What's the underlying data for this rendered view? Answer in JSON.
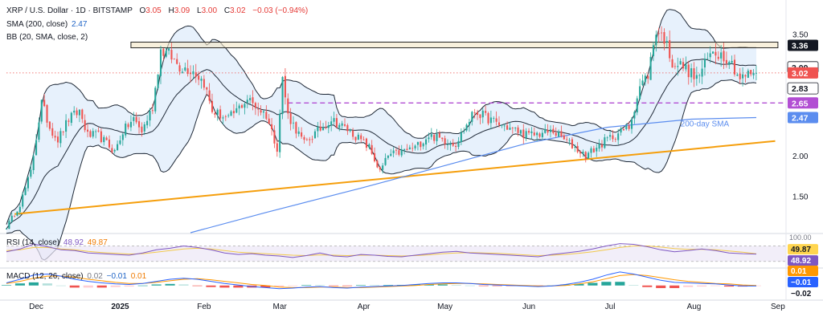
{
  "header": {
    "symbol": "XRP / U.S. Dollar · 1D · BITSTAMP",
    "o_label": "O",
    "o": "3.05",
    "h_label": "H",
    "h": "3.09",
    "l_label": "L",
    "l": "3.00",
    "c_label": "C",
    "c": "3.02",
    "chg": "−0.03 (−0.94%)",
    "sma_label": "SMA (200, close)",
    "sma_val": "2.47",
    "bb_label": "BB (20, SMA, close, 2)"
  },
  "rsi_header": {
    "label": "RSI (14, close)",
    "v1": "48.92",
    "v2": "49.87"
  },
  "macd_header": {
    "label": "MACD (12, 26, close)",
    "v1": "0.02",
    "v2": "−0.01",
    "v3": "0.01"
  },
  "colors": {
    "up": "#26a69a",
    "down": "#ef5350",
    "sma": "#5b8def",
    "bb": "#1f2937",
    "bb_fill": "#e3eefb",
    "trend": "#f59e0b",
    "res_fill": "#f3e6c4",
    "support": "#b24ed3",
    "rsi": "#7e57c2",
    "rsi_ma": "#f2c94c",
    "macd": "#2962ff",
    "signal": "#ff9800"
  },
  "chart_data": [
    {
      "type": "candlestick",
      "title": "XRP / U.S. Dollar · 1D · BITSTAMP",
      "ylim": [
        1.05,
        3.86
      ],
      "xlim": [
        "2024-11-20",
        "2025-09-04"
      ],
      "y_ticks": [
        "1.50",
        "2.00",
        "2.50",
        "3.00",
        "3.50"
      ],
      "x_ticks": [
        "Dec",
        "2025",
        "Feb",
        "Mar",
        "Apr",
        "May",
        "Jun",
        "Jul",
        "Aug",
        "Sep"
      ],
      "anchors": [
        {
          "date": "2024-11-20",
          "v": 1.12
        },
        {
          "date": "2024-11-25",
          "v": 1.4
        },
        {
          "date": "2024-11-29",
          "v": 1.8
        },
        {
          "date": "2024-12-03",
          "v": 2.65
        },
        {
          "date": "2024-12-06",
          "v": 2.35
        },
        {
          "date": "2024-12-09",
          "v": 2.2
        },
        {
          "date": "2024-12-13",
          "v": 2.45
        },
        {
          "date": "2024-12-17",
          "v": 2.55
        },
        {
          "date": "2024-12-20",
          "v": 2.25
        },
        {
          "date": "2024-12-24",
          "v": 2.25
        },
        {
          "date": "2024-12-30",
          "v": 2.05
        },
        {
          "date": "2025-01-02",
          "v": 2.3
        },
        {
          "date": "2025-01-06",
          "v": 2.45
        },
        {
          "date": "2025-01-09",
          "v": 2.3
        },
        {
          "date": "2025-01-13",
          "v": 2.6
        },
        {
          "date": "2025-01-16",
          "v": 3.3
        },
        {
          "date": "2025-01-19",
          "v": 3.25
        },
        {
          "date": "2025-01-23",
          "v": 3.1
        },
        {
          "date": "2025-01-28",
          "v": 3.05
        },
        {
          "date": "2025-02-01",
          "v": 2.9
        },
        {
          "date": "2025-02-04",
          "v": 2.55
        },
        {
          "date": "2025-02-10",
          "v": 2.45
        },
        {
          "date": "2025-02-17",
          "v": 2.7
        },
        {
          "date": "2025-02-24",
          "v": 2.5
        },
        {
          "date": "2025-02-28",
          "v": 2.1
        },
        {
          "date": "2025-03-02",
          "v": 2.95
        },
        {
          "date": "2025-03-04",
          "v": 2.5
        },
        {
          "date": "2025-03-10",
          "v": 2.15
        },
        {
          "date": "2025-03-20",
          "v": 2.45
        },
        {
          "date": "2025-03-27",
          "v": 2.3
        },
        {
          "date": "2025-04-03",
          "v": 2.1
        },
        {
          "date": "2025-04-07",
          "v": 1.8
        },
        {
          "date": "2025-04-10",
          "v": 2.0
        },
        {
          "date": "2025-04-20",
          "v": 2.1
        },
        {
          "date": "2025-04-25",
          "v": 2.25
        },
        {
          "date": "2025-05-05",
          "v": 2.15
        },
        {
          "date": "2025-05-12",
          "v": 2.55
        },
        {
          "date": "2025-05-20",
          "v": 2.4
        },
        {
          "date": "2025-06-01",
          "v": 2.25
        },
        {
          "date": "2025-06-10",
          "v": 2.3
        },
        {
          "date": "2025-06-22",
          "v": 2.0
        },
        {
          "date": "2025-06-30",
          "v": 2.2
        },
        {
          "date": "2025-07-08",
          "v": 2.35
        },
        {
          "date": "2025-07-12",
          "v": 2.85
        },
        {
          "date": "2025-07-15",
          "v": 3.0
        },
        {
          "date": "2025-07-18",
          "v": 3.55
        },
        {
          "date": "2025-07-21",
          "v": 3.45
        },
        {
          "date": "2025-07-24",
          "v": 3.15
        },
        {
          "date": "2025-07-28",
          "v": 3.1
        },
        {
          "date": "2025-08-02",
          "v": 2.95
        },
        {
          "date": "2025-08-08",
          "v": 3.3
        },
        {
          "date": "2025-08-14",
          "v": 3.2
        },
        {
          "date": "2025-08-18",
          "v": 2.95
        },
        {
          "date": "2025-08-24",
          "v": 3.05
        }
      ],
      "bollinger_bands": {
        "period": 20,
        "stddev": 2
      },
      "sma_200": [
        {
          "date": "2025-01-27",
          "v": 1.05
        },
        {
          "date": "2025-02-24",
          "v": 1.3
        },
        {
          "date": "2025-03-31",
          "v": 1.6
        },
        {
          "date": "2025-04-28",
          "v": 1.85
        },
        {
          "date": "2025-05-31",
          "v": 2.15
        },
        {
          "date": "2025-06-30",
          "v": 2.35
        },
        {
          "date": "2025-07-31",
          "v": 2.45
        },
        {
          "date": "2025-08-24",
          "v": 2.47
        }
      ],
      "resistance_zone": [
        3.33,
        3.4
      ],
      "support_line": 2.65,
      "trend_line": [
        {
          "date": "2024-11-23",
          "v": 1.28
        },
        {
          "date": "2025-08-31",
          "v": 2.18
        }
      ],
      "current_price_line": 3.02,
      "price_labels": [
        {
          "text": "3.36",
          "style": "dark",
          "v": 3.36
        },
        {
          "text": "3.09",
          "style": "white",
          "v": 3.09
        },
        {
          "text": "3.02",
          "style": "red",
          "v": 3.02
        },
        {
          "text": "2.83",
          "style": "white",
          "v": 2.83
        },
        {
          "text": "2.65",
          "style": "purple",
          "v": 2.65
        },
        {
          "text": "2.47",
          "style": "blue",
          "v": 2.47
        }
      ],
      "annotations": [
        "200-day SMA"
      ],
      "last_close": 3.02
    },
    {
      "type": "line",
      "title": "RSI (14, close)",
      "ylim": [
        15,
        100
      ],
      "ticks": [
        "100.00"
      ],
      "bands": [
        30,
        70
      ],
      "series": [
        {
          "name": "RSI",
          "values": [
            55,
            62,
            75,
            68,
            60,
            58,
            52,
            50,
            48,
            46,
            52,
            60,
            64,
            70,
            66,
            60,
            52,
            48,
            50,
            46,
            44,
            40,
            45,
            52,
            44,
            42,
            48,
            46,
            43,
            42,
            46,
            50,
            54,
            56,
            52,
            50,
            48,
            46,
            44,
            42,
            48,
            52,
            56,
            62,
            70,
            76,
            74,
            68,
            60,
            55,
            58,
            62,
            58,
            52,
            50,
            48.92
          ]
        },
        {
          "name": "Signal",
          "values": [
            58,
            60,
            66,
            66,
            62,
            60,
            56,
            53,
            51,
            49,
            50,
            54,
            58,
            62,
            64,
            62,
            58,
            54,
            52,
            50,
            48,
            46,
            45,
            47,
            46,
            45,
            46,
            46,
            45,
            44,
            45,
            47,
            50,
            52,
            53,
            52,
            51,
            49,
            47,
            45,
            46,
            48,
            51,
            55,
            60,
            66,
            70,
            70,
            67,
            63,
            61,
            61,
            60,
            57,
            54,
            49.87
          ]
        }
      ],
      "value_labels": [
        "49.87",
        "48.92"
      ]
    },
    {
      "type": "bar",
      "title": "MACD (12, 26, close)",
      "ylim": [
        -0.25,
        0.32
      ],
      "macd": [
        0.05,
        0.12,
        0.2,
        0.22,
        0.18,
        0.12,
        0.08,
        0.05,
        0.03,
        0.02,
        0.04,
        0.08,
        0.12,
        0.14,
        0.12,
        0.08,
        0.04,
        0.01,
        -0.02,
        -0.04,
        -0.06,
        -0.05,
        -0.03,
        -0.02,
        -0.04,
        -0.05,
        -0.03,
        -0.02,
        -0.01,
        0.0,
        0.02,
        0.04,
        0.05,
        0.05,
        0.04,
        0.02,
        0.01,
        0.0,
        -0.01,
        -0.02,
        -0.01,
        0.02,
        0.06,
        0.12,
        0.2,
        0.26,
        0.22,
        0.16,
        0.1,
        0.06,
        0.05,
        0.04,
        0.03,
        0.01,
        -0.01,
        -0.01
      ],
      "signal": [
        0.04,
        0.08,
        0.14,
        0.18,
        0.18,
        0.16,
        0.12,
        0.09,
        0.06,
        0.04,
        0.04,
        0.06,
        0.09,
        0.12,
        0.13,
        0.11,
        0.08,
        0.05,
        0.02,
        0.0,
        -0.03,
        -0.04,
        -0.04,
        -0.03,
        -0.03,
        -0.04,
        -0.04,
        -0.03,
        -0.02,
        -0.01,
        0.0,
        0.02,
        0.03,
        0.04,
        0.04,
        0.03,
        0.02,
        0.01,
        0.0,
        -0.01,
        -0.01,
        0.0,
        0.03,
        0.07,
        0.13,
        0.19,
        0.21,
        0.19,
        0.15,
        0.11,
        0.08,
        0.06,
        0.04,
        0.03,
        0.01,
        0.0
      ],
      "value_labels": [
        "0.01",
        "−0.01",
        "−0.02"
      ]
    }
  ]
}
